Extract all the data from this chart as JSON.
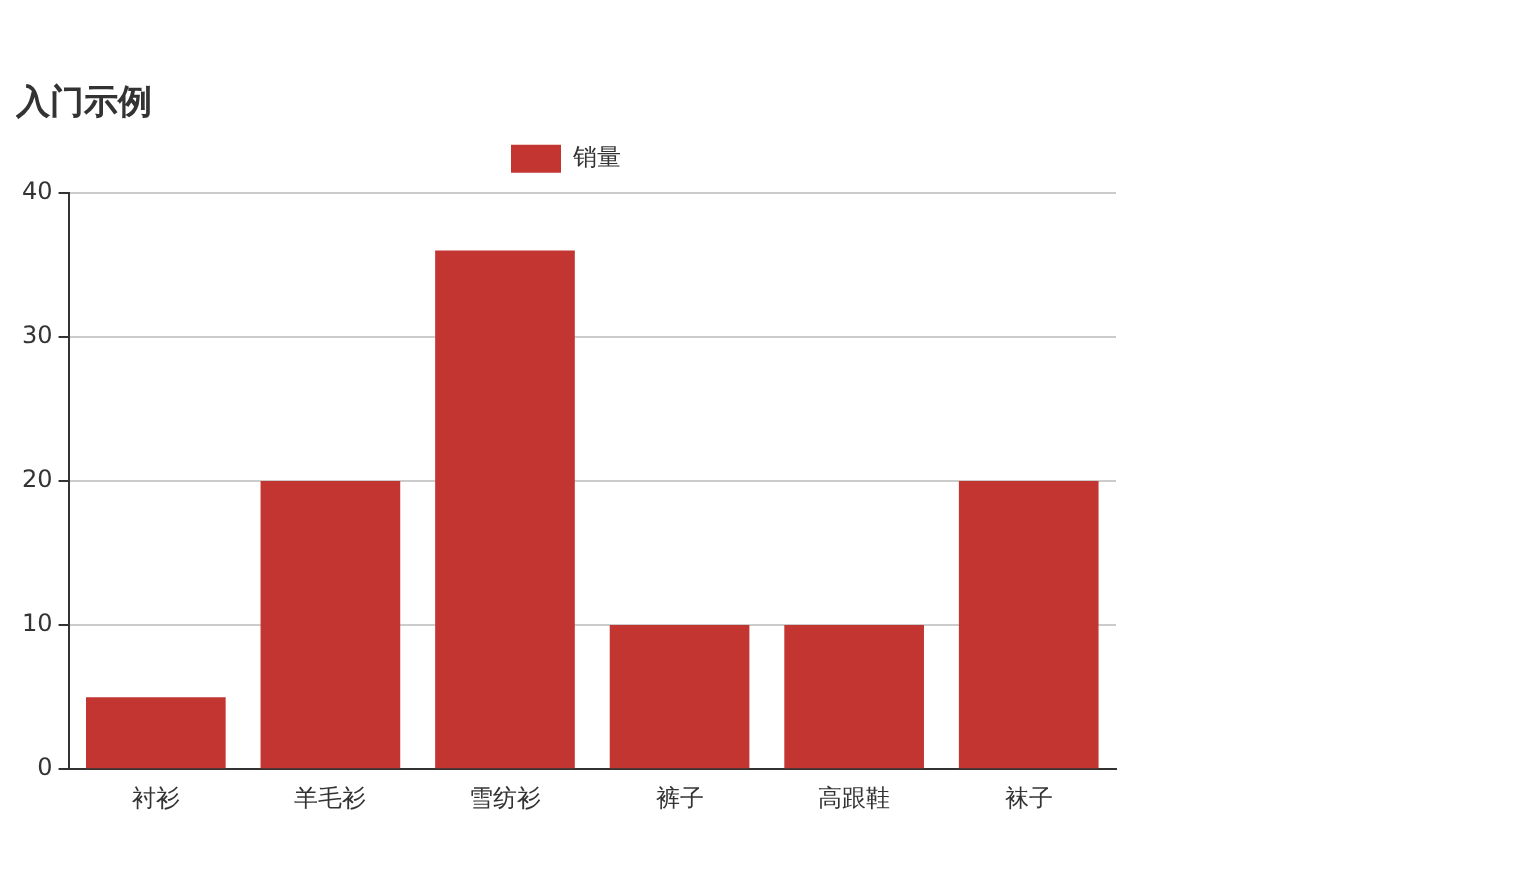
{
  "chart_data": {
    "type": "bar",
    "title": "入门示例",
    "categories": [
      "衬衫",
      "羊毛衫",
      "雪纺衫",
      "裤子",
      "高跟鞋",
      "袜子"
    ],
    "series": [
      {
        "name": "销量",
        "color": "#c23531",
        "values": [
          5,
          20,
          36,
          10,
          10,
          20
        ]
      }
    ],
    "ylim": [
      0,
      40
    ],
    "yticks": [
      0,
      10,
      20,
      30,
      40
    ],
    "grid": "y",
    "legend": "top"
  }
}
